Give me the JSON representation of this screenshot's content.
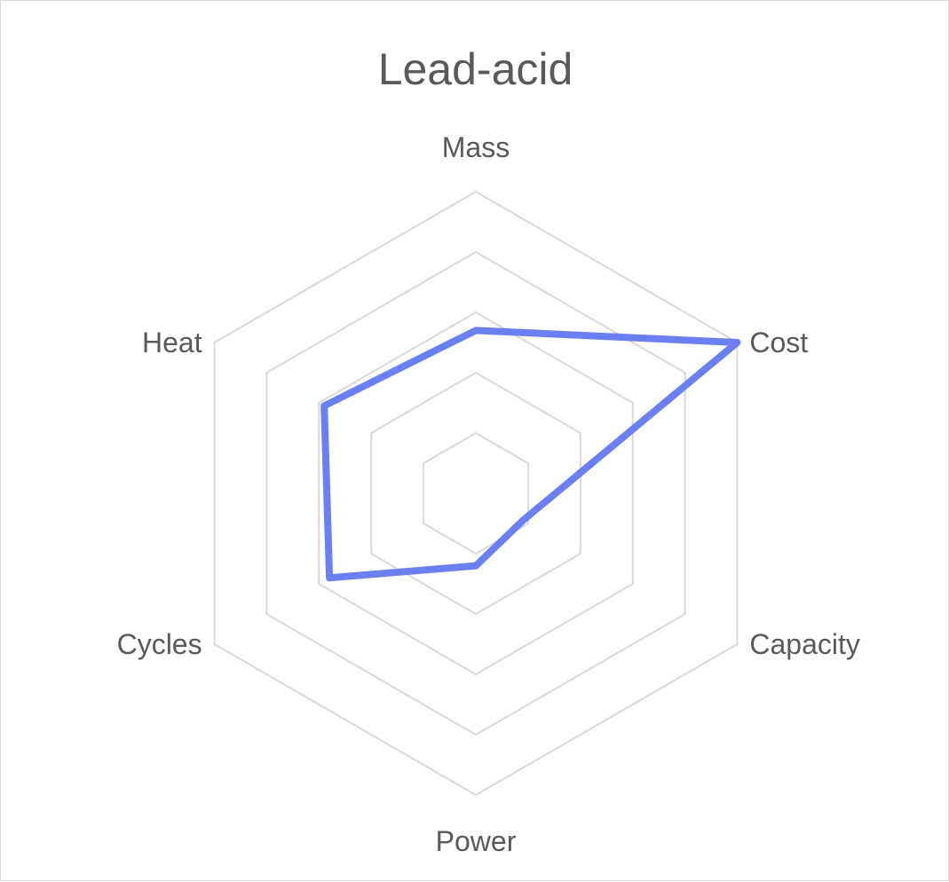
{
  "chart_data": {
    "type": "radar",
    "title": "Lead-acid",
    "categories": [
      "Mass",
      "Cost",
      "Capacity",
      "Power",
      "Cycles",
      "Heat"
    ],
    "series": [
      {
        "values": [
          2.7,
          5.0,
          0.9,
          1.2,
          2.8,
          2.9
        ],
        "color": "#6b7ff0"
      }
    ],
    "rlim": [
      0,
      5
    ],
    "rings": 5,
    "grid": true,
    "legend": "none",
    "grid_color": "#d9d9d9",
    "label_color": "#595959"
  }
}
